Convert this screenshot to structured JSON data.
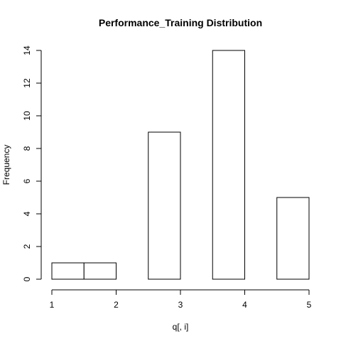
{
  "chart_data": {
    "type": "bar",
    "title": "Performance_Training Distribution",
    "xlabel": "q[, i]",
    "ylabel": "Frequency",
    "bins": [
      {
        "start": 1.0,
        "end": 1.5,
        "value": 1
      },
      {
        "start": 1.5,
        "end": 2.0,
        "value": 1
      },
      {
        "start": 2.0,
        "end": 2.5,
        "value": 0
      },
      {
        "start": 2.5,
        "end": 3.0,
        "value": 9
      },
      {
        "start": 3.0,
        "end": 3.5,
        "value": 0
      },
      {
        "start": 3.5,
        "end": 4.0,
        "value": 14
      },
      {
        "start": 4.0,
        "end": 4.5,
        "value": 0
      },
      {
        "start": 4.5,
        "end": 5.0,
        "value": 5
      }
    ],
    "xticks": [
      1,
      2,
      3,
      4,
      5
    ],
    "yticks": [
      0,
      2,
      4,
      6,
      8,
      10,
      12,
      14
    ],
    "xlim": [
      1,
      5
    ],
    "ylim": [
      0,
      14
    ],
    "grid": false
  }
}
